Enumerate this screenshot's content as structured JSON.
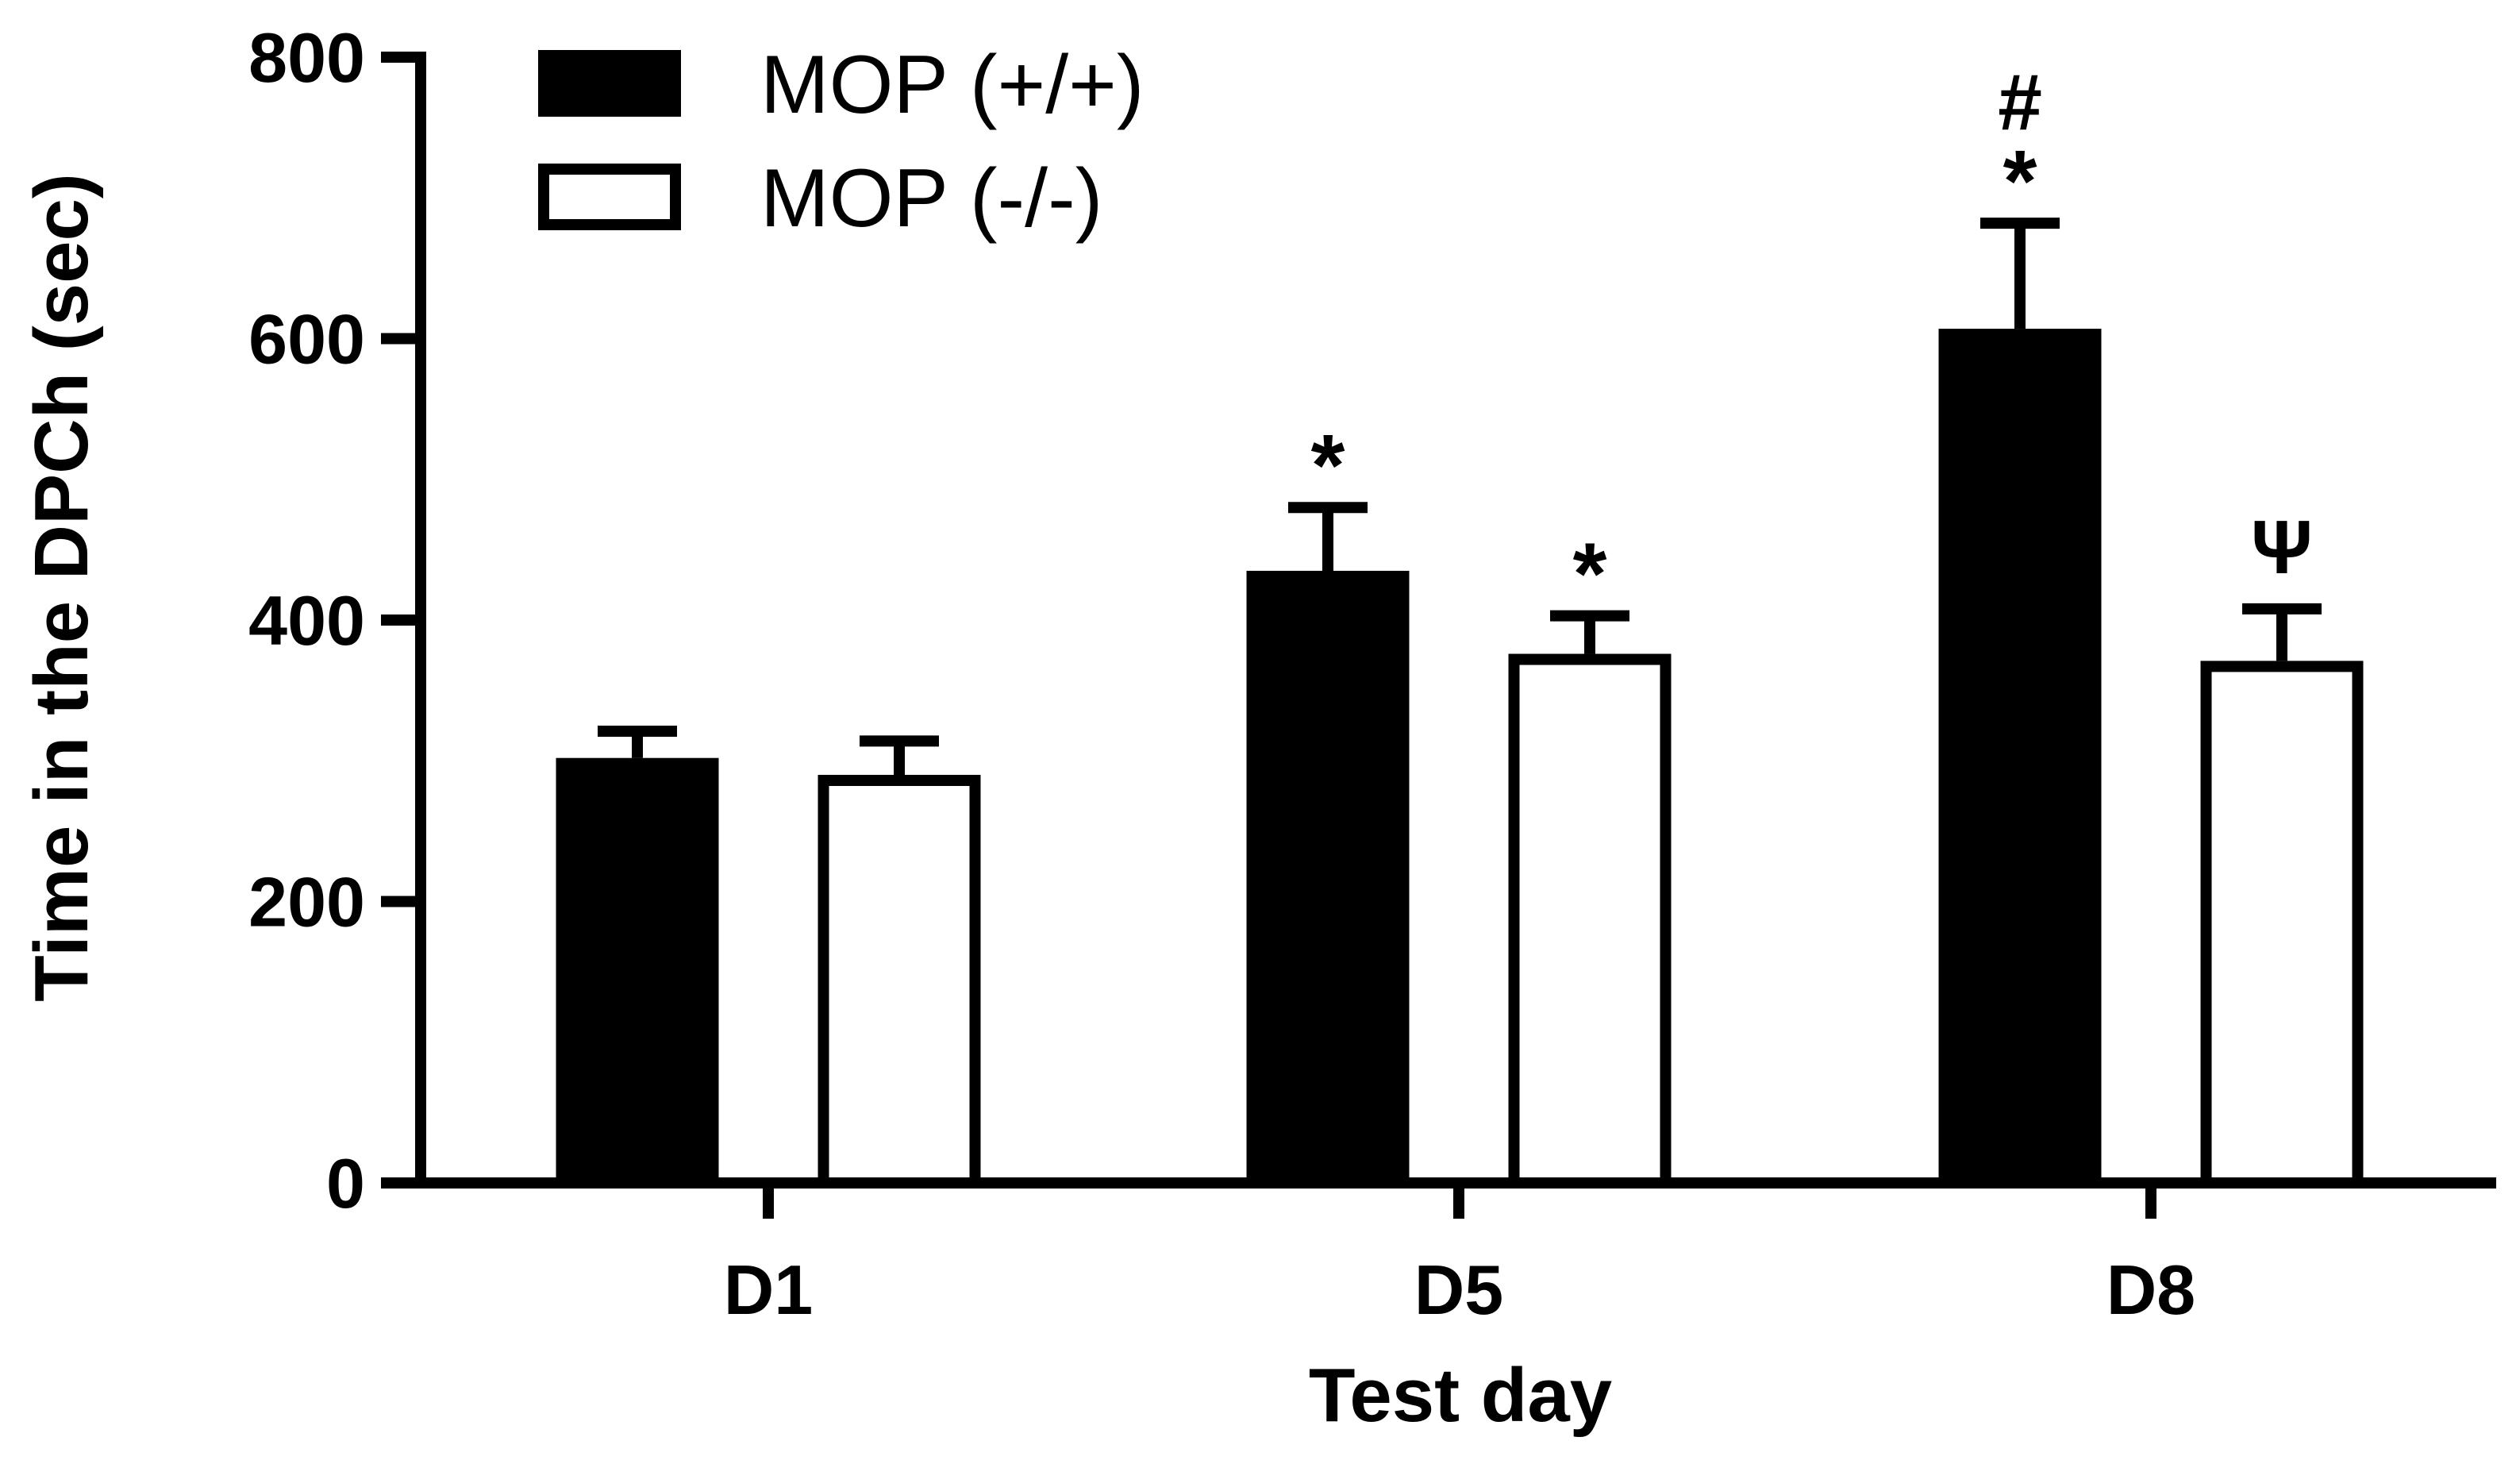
{
  "chart_data": {
    "type": "bar",
    "title": "",
    "xlabel": "Test day",
    "ylabel": "Time in the DPCh (sec)",
    "ylim": [
      0,
      800
    ],
    "yticks": [
      0,
      200,
      400,
      600,
      800
    ],
    "categories": [
      "D1",
      "D5",
      "D8"
    ],
    "series": [
      {
        "name": "MOP (+/+)",
        "fill": "#000000",
        "values": [
          302,
          435,
          607
        ],
        "errors": [
          19,
          45,
          75
        ],
        "annotations": [
          "",
          "*",
          "*"
        ]
      },
      {
        "name": "MOP (-/-)",
        "fill": "#ffffff",
        "values": [
          290,
          376,
          371
        ],
        "errors": [
          24,
          27,
          37
        ],
        "annotations": [
          "",
          "*",
          "Ψ"
        ]
      }
    ],
    "extra_annotations": [
      {
        "category": "D8",
        "series": 0,
        "label": "#"
      }
    ],
    "legend_position": "top-left"
  }
}
